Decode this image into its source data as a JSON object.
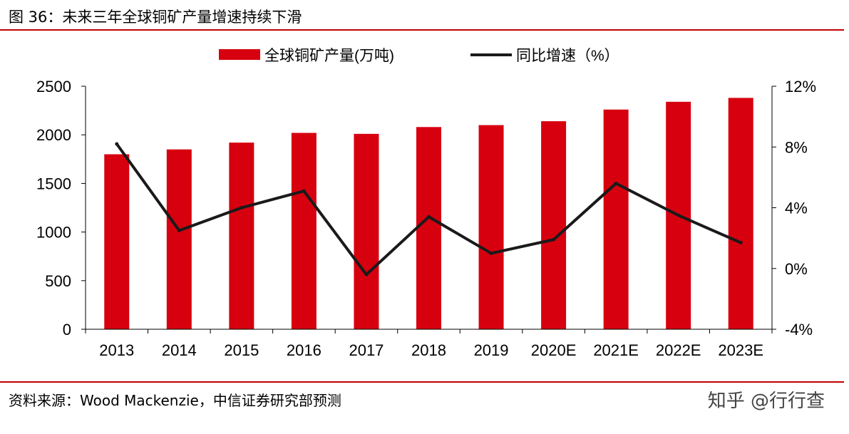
{
  "figure": {
    "title": "图 36：未来三年全球铜矿产量增速持续下滑",
    "source": "资料来源：Wood Mackenzie，中信证券研究部预测",
    "brand": "知乎 @行行查"
  },
  "colors": {
    "bar": "#d7000f",
    "line": "#1a1a1a",
    "rule": "#c00000"
  },
  "chart_data": {
    "type": "bar+line",
    "categories": [
      "2013",
      "2014",
      "2015",
      "2016",
      "2017",
      "2018",
      "2019",
      "2020E",
      "2021E",
      "2022E",
      "2023E"
    ],
    "series": [
      {
        "name": "全球铜矿产量(万吨)",
        "type": "bar",
        "axis": "left",
        "values": [
          1800,
          1850,
          1920,
          2020,
          2010,
          2080,
          2100,
          2140,
          2260,
          2340,
          2380
        ]
      },
      {
        "name": "同比增速（%）",
        "type": "line",
        "axis": "right",
        "values": [
          8.2,
          2.5,
          4.0,
          5.1,
          -0.4,
          3.4,
          1.0,
          1.9,
          5.6,
          3.5,
          1.7
        ]
      }
    ],
    "y_left": {
      "min": 0,
      "max": 2500,
      "ticks": [
        "0",
        "500",
        "1000",
        "1500",
        "2000",
        "2500"
      ]
    },
    "y_right": {
      "min": -4,
      "max": 12,
      "ticks": [
        "-4%",
        "0%",
        "4%",
        "8%",
        "12%"
      ]
    },
    "legend_position": "top-center",
    "grid": false
  }
}
